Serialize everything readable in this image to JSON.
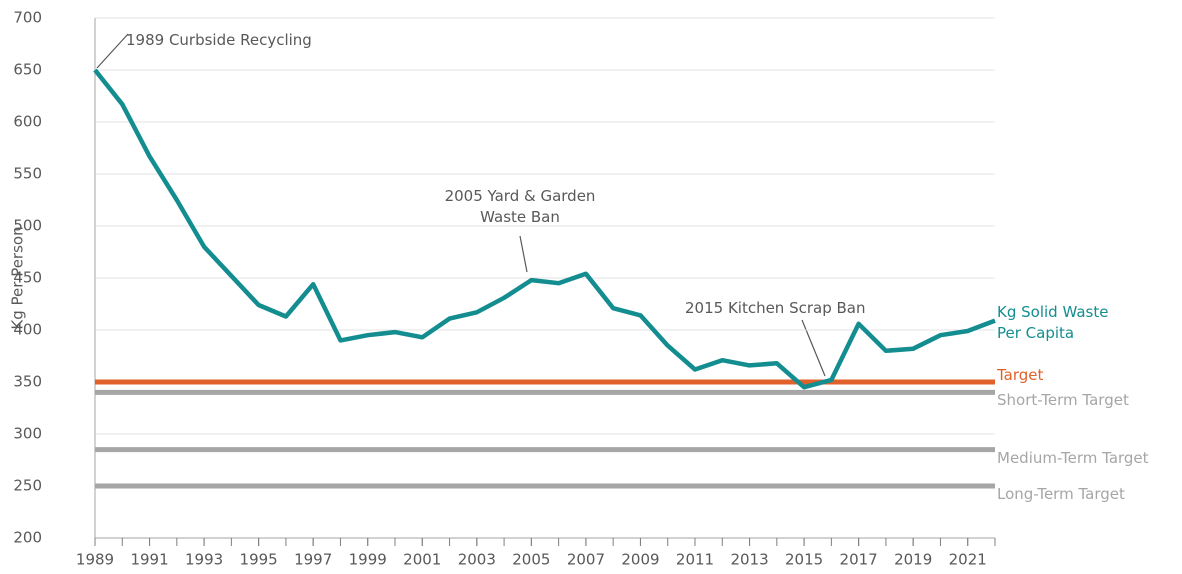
{
  "chart_data": {
    "type": "line",
    "y_label": "Kg Per Person",
    "x": [
      1989,
      1990,
      1991,
      1992,
      1993,
      1994,
      1995,
      1996,
      1997,
      1998,
      1999,
      2000,
      2001,
      2002,
      2003,
      2004,
      2005,
      2006,
      2007,
      2008,
      2009,
      2010,
      2011,
      2012,
      2013,
      2014,
      2015,
      2016,
      2017,
      2018,
      2019,
      2020,
      2021,
      2022
    ],
    "series": [
      {
        "name": "Kg Solid Waste Per Capita",
        "color": "#138d90",
        "values": [
          650,
          617,
          567,
          525,
          480,
          452,
          424,
          413,
          444,
          390,
          395,
          398,
          393,
          411,
          417,
          431,
          448,
          445,
          454,
          421,
          414,
          385,
          362,
          371,
          366,
          368,
          345,
          352,
          406,
          380,
          382,
          395,
          399,
          409
        ]
      }
    ],
    "reference_lines": [
      {
        "name": "Target",
        "value": 350,
        "color": "#e0622a"
      },
      {
        "name": "Short-Term Target",
        "value": 340,
        "color": "#a6a6a6"
      },
      {
        "name": "Medium-Term Target",
        "value": 285,
        "color": "#a6a6a6"
      },
      {
        "name": "Long-Term Target",
        "value": 250,
        "color": "#a6a6a6"
      }
    ],
    "annotations": [
      {
        "text": "1989 Curbside Recycling"
      },
      {
        "text": "2005 Yard & Garden Waste Ban"
      },
      {
        "text": "2015 Kitchen Scrap Ban"
      }
    ],
    "xlim": [
      1989,
      2022
    ],
    "xticks": [
      1989,
      1991,
      1993,
      1995,
      1997,
      1999,
      2001,
      2003,
      2005,
      2007,
      2009,
      2011,
      2013,
      2015,
      2017,
      2019,
      2021
    ],
    "ylim": [
      200,
      700
    ],
    "yticks": [
      200,
      250,
      300,
      350,
      400,
      450,
      500,
      550,
      600,
      650,
      700
    ],
    "grid": true
  }
}
